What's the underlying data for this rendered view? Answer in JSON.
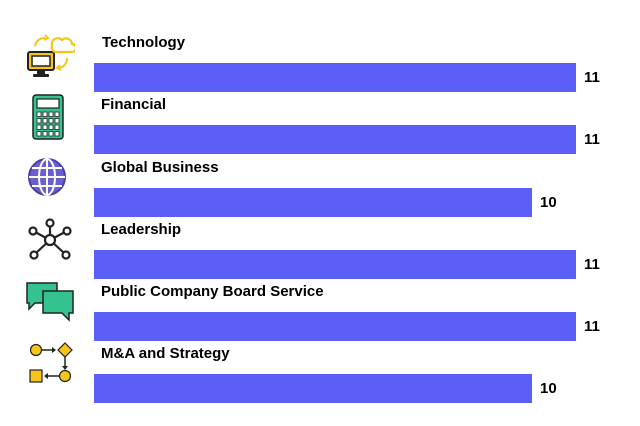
{
  "chart_data": {
    "type": "bar",
    "orientation": "horizontal",
    "categories": [
      "Technology",
      "Financial",
      "Global Business",
      "Leadership",
      "Public Company Board Service",
      "M&A and Strategy"
    ],
    "values": [
      11,
      11,
      10,
      11,
      11,
      10
    ],
    "value_labels": [
      "11",
      "11",
      "10",
      "11",
      "11",
      "10"
    ],
    "icons": [
      "computer-cloud-sync-icon",
      "calculator-icon",
      "globe-icon",
      "network-hub-icon",
      "speech-bubbles-icon",
      "process-flow-icon"
    ],
    "xlim": [
      0,
      11
    ],
    "grid": false,
    "legend": "none",
    "colors": {
      "bar": "#5b5ef7",
      "icon_yellow": "#f5c518",
      "icon_green": "#34c28e",
      "icon_purple": "#6a5fcf",
      "icon_dark": "#222222",
      "text": "#000000"
    }
  }
}
